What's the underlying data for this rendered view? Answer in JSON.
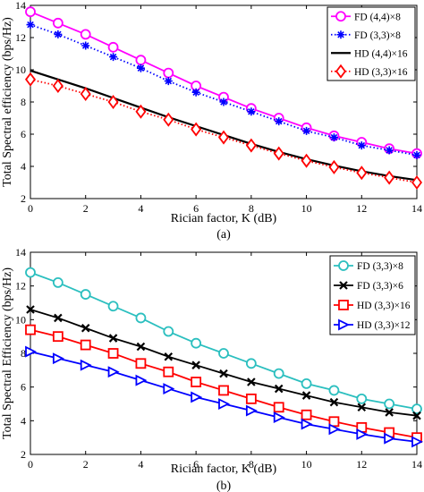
{
  "chart_data": [
    {
      "type": "line",
      "caption": "(a)",
      "xlabel": "Rician factor, K (dB)",
      "ylabel": "Total Spectral efficiency (bps/Hz)",
      "xlim": [
        0,
        14
      ],
      "ylim": [
        2,
        14
      ],
      "xticks": [
        0,
        2,
        4,
        6,
        8,
        10,
        12,
        14
      ],
      "yticks": [
        2,
        4,
        6,
        8,
        10,
        12,
        14
      ],
      "legend_position": "top-right",
      "x": [
        0,
        1,
        2,
        3,
        4,
        5,
        6,
        7,
        8,
        9,
        10,
        11,
        12,
        13,
        14
      ],
      "series": [
        {
          "name": "FD (4,4)×8",
          "color": "#ff00ff",
          "marker": "circle",
          "line": "solid",
          "values": [
            13.6,
            12.9,
            12.2,
            11.4,
            10.6,
            9.8,
            9.0,
            8.3,
            7.6,
            7.0,
            6.4,
            5.9,
            5.5,
            5.1,
            4.8
          ]
        },
        {
          "name": "FD (3,3)×8",
          "color": "#0000ff",
          "marker": "asterisk",
          "line": "dotted",
          "values": [
            12.8,
            12.2,
            11.5,
            10.8,
            10.1,
            9.3,
            8.6,
            8.0,
            7.4,
            6.8,
            6.2,
            5.8,
            5.3,
            5.0,
            4.7
          ]
        },
        {
          "name": "HD (4,4)×16",
          "color": "#000000",
          "marker": "none",
          "line": "solid",
          "values": [
            9.95,
            9.4,
            8.85,
            8.25,
            7.65,
            7.05,
            6.5,
            5.95,
            5.4,
            4.9,
            4.45,
            4.05,
            3.7,
            3.4,
            3.15
          ]
        },
        {
          "name": "HD (3,3)×16",
          "color": "#ff0000",
          "marker": "diamond",
          "line": "dotted",
          "values": [
            9.4,
            9.0,
            8.5,
            8.0,
            7.4,
            6.9,
            6.3,
            5.8,
            5.3,
            4.8,
            4.35,
            3.95,
            3.6,
            3.3,
            3.0
          ]
        }
      ]
    },
    {
      "type": "line",
      "caption": "(b)",
      "xlabel": "Rician factor, K (dB)",
      "ylabel": "Total Spectral Efficiency (bps/Hz)",
      "xlim": [
        0,
        14
      ],
      "ylim": [
        2,
        14
      ],
      "xticks": [
        0,
        2,
        4,
        6,
        8,
        10,
        12,
        14
      ],
      "yticks": [
        2,
        4,
        6,
        8,
        10,
        12,
        14
      ],
      "legend_position": "top-right",
      "x": [
        0,
        1,
        2,
        3,
        4,
        5,
        6,
        7,
        8,
        9,
        10,
        11,
        12,
        13,
        14
      ],
      "series": [
        {
          "name": "FD (3,3)×8",
          "color": "#2bbfbf",
          "marker": "circle",
          "line": "solid",
          "values": [
            12.8,
            12.2,
            11.5,
            10.8,
            10.1,
            9.3,
            8.6,
            8.0,
            7.4,
            6.8,
            6.2,
            5.8,
            5.3,
            5.0,
            4.7
          ]
        },
        {
          "name": "FD (3,3)×6",
          "color": "#000000",
          "marker": "x",
          "line": "solid",
          "values": [
            10.6,
            10.1,
            9.5,
            8.9,
            8.4,
            7.8,
            7.3,
            6.8,
            6.3,
            5.9,
            5.5,
            5.1,
            4.8,
            4.5,
            4.3
          ]
        },
        {
          "name": "HD (3,3)×16",
          "color": "#ff0000",
          "marker": "square",
          "line": "solid",
          "values": [
            9.4,
            9.0,
            8.5,
            8.0,
            7.4,
            6.9,
            6.3,
            5.8,
            5.3,
            4.8,
            4.35,
            3.95,
            3.6,
            3.3,
            3.0
          ]
        },
        {
          "name": "HD (3,3)×12",
          "color": "#0000ff",
          "marker": "triangle-right",
          "line": "solid",
          "values": [
            8.1,
            7.7,
            7.3,
            6.9,
            6.4,
            5.9,
            5.4,
            5.0,
            4.6,
            4.2,
            3.8,
            3.5,
            3.2,
            2.95,
            2.75
          ]
        }
      ]
    }
  ]
}
